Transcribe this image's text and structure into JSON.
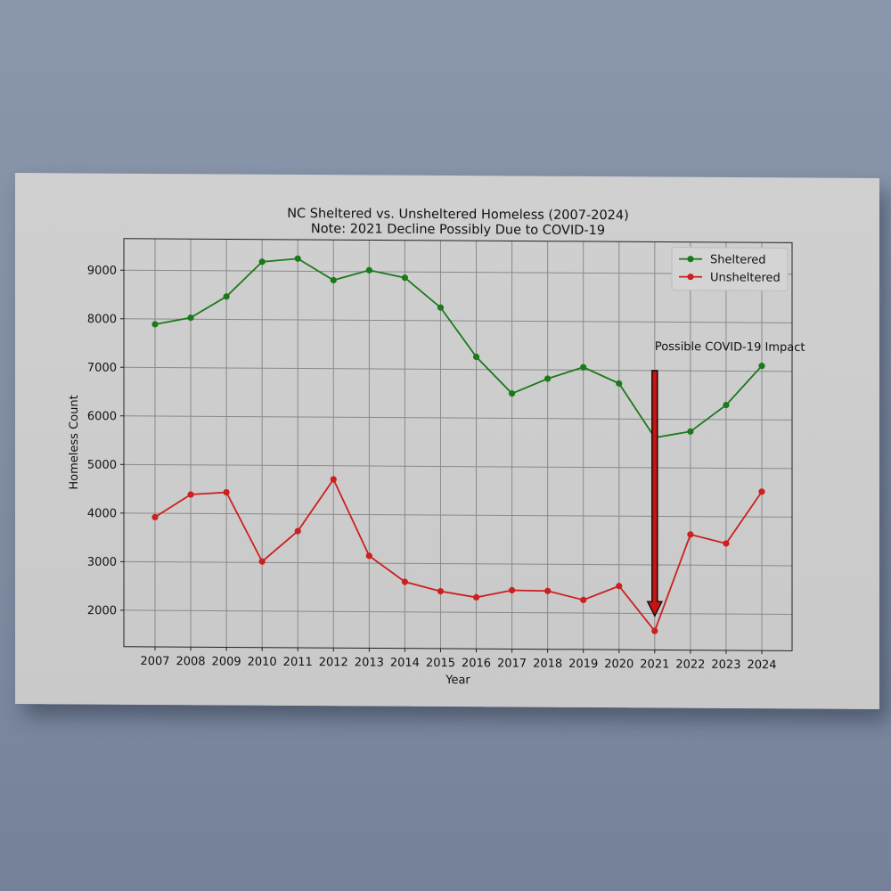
{
  "chart_data": {
    "type": "line",
    "title": "NC Sheltered vs. Unsheltered Homeless (2007-2024)",
    "subtitle": "Note: 2021 Decline Possibly Due to COVID-19",
    "xlabel": "Year",
    "ylabel": "Homeless Count",
    "x": [
      "2007",
      "2008",
      "2009",
      "2010",
      "2011",
      "2012",
      "2013",
      "2014",
      "2015",
      "2016",
      "2017",
      "2018",
      "2019",
      "2020",
      "2021",
      "2022",
      "2023",
      "2024"
    ],
    "yticks": [
      2000,
      3000,
      4000,
      5000,
      6000,
      7000,
      8000,
      9000
    ],
    "ylim": [
      1250,
      9650
    ],
    "grid": true,
    "legend_position": "top-right",
    "series": [
      {
        "name": "Sheltered",
        "color": "#1a7a1a",
        "marker": "circle",
        "values": [
          7890,
          8030,
          8470,
          9190,
          9260,
          8820,
          9030,
          8880,
          8270,
          7260,
          6510,
          6820,
          7060,
          6730,
          5620,
          5750,
          6300,
          7110
        ]
      },
      {
        "name": "Unsheltered",
        "color": "#cc1f1f",
        "marker": "circle",
        "values": [
          3920,
          4390,
          4440,
          3020,
          3650,
          4720,
          3150,
          2620,
          2430,
          2310,
          2460,
          2450,
          2270,
          2560,
          1640,
          3630,
          3450,
          4520
        ]
      }
    ],
    "annotation": {
      "text": "Possible COVID-19 Impact",
      "arrow_x": "2021",
      "arrow_from_y": 7000,
      "arrow_to_y": 1950,
      "arrow_color": "#cc1111"
    }
  }
}
